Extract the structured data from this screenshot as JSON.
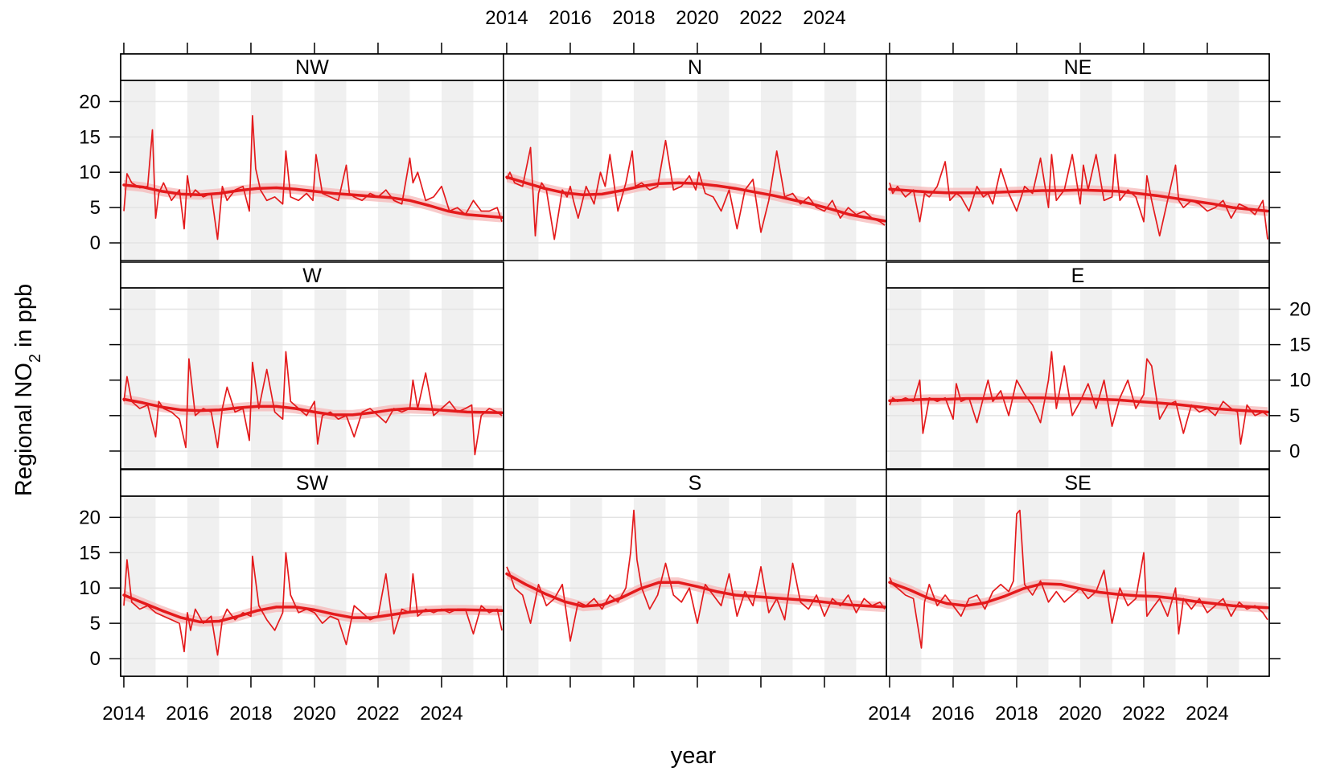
{
  "chart_data": {
    "type": "line",
    "layout": "compass-grid",
    "xlabel": "year",
    "ylabel_main": "Regional NO",
    "ylabel_sub": "2",
    "ylabel_tail": " in ppb",
    "ylim": [
      -2.5,
      23
    ],
    "y_ticks": [
      0,
      5,
      10,
      15,
      20
    ],
    "y_tick_labels": [
      "0",
      "5",
      "10",
      "15",
      "20"
    ],
    "xlim": [
      2013.9,
      2025.95
    ],
    "x_ticks": [
      2014,
      2016,
      2018,
      2020,
      2022,
      2024
    ],
    "x_tick_labels": [
      "2014",
      "2016",
      "2018",
      "2020",
      "2022",
      "2024"
    ],
    "grid": true,
    "shaded_alternate_years": true,
    "colors": {
      "series": "#e41a1c",
      "trend": "#e41a1c",
      "band": "#f6b8b8",
      "year_shade": "#f0f0f0",
      "gridline": "#e3e3e3",
      "frame": "#000000",
      "strip_bg": "#ffffff"
    },
    "panels": [
      {
        "name": "NW",
        "x": [
          2014.0,
          2014.1,
          2014.25,
          2014.5,
          2014.75,
          2014.9,
          2015.0,
          2015.1,
          2015.25,
          2015.5,
          2015.75,
          2015.9,
          2016.0,
          2016.1,
          2016.25,
          2016.5,
          2016.75,
          2016.95,
          2017.1,
          2017.25,
          2017.5,
          2017.75,
          2017.95,
          2018.05,
          2018.15,
          2018.3,
          2018.5,
          2018.75,
          2019.0,
          2019.1,
          2019.25,
          2019.5,
          2019.75,
          2019.95,
          2020.05,
          2020.25,
          2020.5,
          2020.75,
          2021.0,
          2021.1,
          2021.25,
          2021.5,
          2021.75,
          2022.0,
          2022.25,
          2022.5,
          2022.75,
          2023.0,
          2023.1,
          2023.25,
          2023.5,
          2023.75,
          2024.0,
          2024.25,
          2024.5,
          2024.75,
          2025.0,
          2025.25,
          2025.5,
          2025.75,
          2025.9
        ],
        "values": [
          4.5,
          9.8,
          8.5,
          7.8,
          8.0,
          16.0,
          3.5,
          7.0,
          8.5,
          6.0,
          7.5,
          2.0,
          9.5,
          6.5,
          7.5,
          6.5,
          7.0,
          0.5,
          8.0,
          6.0,
          7.5,
          8.0,
          4.5,
          18.0,
          10.5,
          7.5,
          6.0,
          6.5,
          5.5,
          13.0,
          6.5,
          6.0,
          7.0,
          6.0,
          12.5,
          7.0,
          6.5,
          6.0,
          11.0,
          7.0,
          6.5,
          6.0,
          7.0,
          6.5,
          7.5,
          6.0,
          5.5,
          12.0,
          8.5,
          10.0,
          6.0,
          6.5,
          8.0,
          4.5,
          5.0,
          4.0,
          6.0,
          4.5,
          4.5,
          5.0,
          3.0
        ],
        "trend": [
          8.2,
          7.9,
          7.3,
          6.9,
          6.8,
          7.0,
          7.4,
          7.7,
          7.8,
          7.6,
          7.3,
          7.0,
          6.8,
          6.6,
          6.4,
          6.0,
          5.3,
          4.5,
          4.0,
          3.6
        ]
      },
      {
        "name": "N",
        "x": [
          2014.0,
          2014.1,
          2014.25,
          2014.5,
          2014.75,
          2014.9,
          2015.0,
          2015.1,
          2015.25,
          2015.5,
          2015.75,
          2015.9,
          2016.0,
          2016.1,
          2016.25,
          2016.5,
          2016.75,
          2016.95,
          2017.1,
          2017.25,
          2017.5,
          2017.75,
          2017.95,
          2018.05,
          2018.25,
          2018.5,
          2018.75,
          2019.0,
          2019.25,
          2019.5,
          2019.75,
          2019.95,
          2020.05,
          2020.25,
          2020.5,
          2020.75,
          2021.0,
          2021.25,
          2021.5,
          2021.75,
          2022.0,
          2022.25,
          2022.5,
          2022.75,
          2023.0,
          2023.25,
          2023.5,
          2023.75,
          2024.0,
          2024.25,
          2024.5,
          2024.75,
          2025.0,
          2025.25,
          2025.5,
          2025.75,
          2025.9
        ],
        "values": [
          9.0,
          10.0,
          8.5,
          8.0,
          13.5,
          1.0,
          7.0,
          8.5,
          7.5,
          0.5,
          7.5,
          6.5,
          8.0,
          6.0,
          3.5,
          8.0,
          5.5,
          10.0,
          8.0,
          12.5,
          4.5,
          8.5,
          13.0,
          8.0,
          8.5,
          7.5,
          8.0,
          14.5,
          7.5,
          8.0,
          9.5,
          7.5,
          10.0,
          7.0,
          6.5,
          4.5,
          7.5,
          2.0,
          7.5,
          9.0,
          1.5,
          6.0,
          13.0,
          6.5,
          7.0,
          5.5,
          6.5,
          5.0,
          4.5,
          6.0,
          3.5,
          5.0,
          4.0,
          4.5,
          3.5,
          3.0,
          2.5
        ],
        "trend": [
          9.3,
          8.5,
          7.7,
          7.1,
          6.8,
          6.9,
          7.4,
          8.0,
          8.4,
          8.5,
          8.4,
          8.1,
          7.7,
          7.2,
          6.7,
          6.1,
          5.5,
          4.8,
          4.0,
          3.1
        ]
      },
      {
        "name": "NE",
        "x": [
          2014.0,
          2014.1,
          2014.25,
          2014.5,
          2014.75,
          2014.95,
          2015.1,
          2015.25,
          2015.5,
          2015.75,
          2015.9,
          2016.1,
          2016.25,
          2016.5,
          2016.75,
          2016.95,
          2017.1,
          2017.25,
          2017.5,
          2017.75,
          2018.0,
          2018.25,
          2018.5,
          2018.75,
          2019.0,
          2019.1,
          2019.25,
          2019.5,
          2019.75,
          2020.0,
          2020.1,
          2020.25,
          2020.5,
          2020.75,
          2021.0,
          2021.1,
          2021.25,
          2021.5,
          2021.75,
          2022.0,
          2022.1,
          2022.25,
          2022.5,
          2022.75,
          2023.0,
          2023.1,
          2023.25,
          2023.5,
          2023.75,
          2024.0,
          2024.25,
          2024.5,
          2024.75,
          2025.0,
          2025.25,
          2025.5,
          2025.75,
          2025.9
        ],
        "values": [
          8.5,
          7.0,
          8.0,
          6.5,
          7.5,
          3.0,
          7.0,
          6.5,
          8.0,
          11.5,
          6.0,
          7.0,
          6.5,
          4.5,
          8.0,
          6.5,
          7.0,
          5.5,
          10.5,
          7.0,
          4.5,
          8.0,
          7.0,
          12.0,
          5.0,
          12.5,
          6.0,
          7.5,
          12.5,
          5.5,
          11.0,
          7.5,
          12.5,
          6.0,
          6.5,
          12.5,
          6.0,
          7.5,
          6.5,
          3.0,
          9.5,
          6.0,
          1.0,
          6.0,
          11.0,
          6.0,
          5.0,
          6.0,
          5.5,
          4.5,
          5.0,
          6.0,
          3.5,
          5.5,
          5.0,
          4.0,
          6.0,
          0.5
        ],
        "trend": [
          7.6,
          7.4,
          7.2,
          7.1,
          7.1,
          7.1,
          7.2,
          7.3,
          7.4,
          7.4,
          7.5,
          7.4,
          7.3,
          7.0,
          6.7,
          6.3,
          5.9,
          5.5,
          5.0,
          4.5
        ]
      },
      {
        "name": "W",
        "x": [
          2014.0,
          2014.1,
          2014.25,
          2014.5,
          2014.75,
          2015.0,
          2015.1,
          2015.25,
          2015.5,
          2015.75,
          2015.95,
          2016.05,
          2016.25,
          2016.5,
          2016.75,
          2016.95,
          2017.1,
          2017.25,
          2017.5,
          2017.75,
          2017.95,
          2018.05,
          2018.25,
          2018.5,
          2018.75,
          2019.0,
          2019.1,
          2019.25,
          2019.5,
          2019.75,
          2020.0,
          2020.1,
          2020.25,
          2020.5,
          2020.75,
          2021.0,
          2021.25,
          2021.5,
          2021.75,
          2022.0,
          2022.25,
          2022.5,
          2022.75,
          2023.0,
          2023.1,
          2023.25,
          2023.5,
          2023.75,
          2024.0,
          2024.25,
          2024.5,
          2024.75,
          2024.95,
          2025.05,
          2025.25,
          2025.5,
          2025.75,
          2025.9
        ],
        "values": [
          7.0,
          10.5,
          7.0,
          6.0,
          6.5,
          2.0,
          7.0,
          6.0,
          5.5,
          4.5,
          0.5,
          13.0,
          5.0,
          6.0,
          5.5,
          0.5,
          6.0,
          9.0,
          5.5,
          6.0,
          1.5,
          12.5,
          6.0,
          11.5,
          5.5,
          4.5,
          14.0,
          7.0,
          6.0,
          5.0,
          7.0,
          1.0,
          5.0,
          5.5,
          4.5,
          5.0,
          2.0,
          5.5,
          6.0,
          5.0,
          4.0,
          6.0,
          5.5,
          6.0,
          10.0,
          6.0,
          11.0,
          5.0,
          6.0,
          7.0,
          5.5,
          6.0,
          6.5,
          -0.5,
          5.0,
          6.0,
          5.5,
          5.0
        ],
        "trend": [
          7.3,
          6.8,
          6.2,
          5.8,
          5.7,
          5.8,
          6.1,
          6.3,
          6.3,
          6.0,
          5.5,
          5.1,
          5.1,
          5.4,
          5.8,
          6.0,
          5.9,
          5.7,
          5.5,
          5.4
        ]
      },
      {
        "name": "E",
        "x": [
          2014.0,
          2014.1,
          2014.25,
          2014.5,
          2014.75,
          2014.95,
          2015.05,
          2015.25,
          2015.5,
          2015.75,
          2016.0,
          2016.1,
          2016.25,
          2016.5,
          2016.75,
          2016.95,
          2017.1,
          2017.25,
          2017.5,
          2017.75,
          2018.0,
          2018.25,
          2018.5,
          2018.75,
          2019.0,
          2019.1,
          2019.25,
          2019.5,
          2019.75,
          2020.0,
          2020.25,
          2020.5,
          2020.75,
          2021.0,
          2021.25,
          2021.5,
          2021.75,
          2022.0,
          2022.1,
          2022.25,
          2022.5,
          2022.75,
          2023.0,
          2023.25,
          2023.5,
          2023.75,
          2024.0,
          2024.25,
          2024.5,
          2024.75,
          2024.95,
          2025.05,
          2025.25,
          2025.5,
          2025.75,
          2025.9
        ],
        "values": [
          6.5,
          7.5,
          7.0,
          7.5,
          7.0,
          10.0,
          2.5,
          7.5,
          7.0,
          7.5,
          4.5,
          9.5,
          7.0,
          7.5,
          4.0,
          7.5,
          10.0,
          7.0,
          8.5,
          5.0,
          10.0,
          8.0,
          6.5,
          4.0,
          10.0,
          14.0,
          6.0,
          12.0,
          5.0,
          7.0,
          9.5,
          6.0,
          10.0,
          3.5,
          7.5,
          10.0,
          6.0,
          8.0,
          13.0,
          12.0,
          4.5,
          6.5,
          7.0,
          2.5,
          6.5,
          5.5,
          6.0,
          5.0,
          7.0,
          6.0,
          5.5,
          1.0,
          6.5,
          5.0,
          5.5,
          5.0
        ],
        "trend": [
          7.1,
          7.2,
          7.3,
          7.3,
          7.4,
          7.4,
          7.5,
          7.5,
          7.5,
          7.4,
          7.4,
          7.3,
          7.2,
          7.0,
          6.8,
          6.6,
          6.3,
          6.0,
          5.8,
          5.5
        ]
      },
      {
        "name": "SW",
        "x": [
          2014.0,
          2014.1,
          2014.25,
          2014.5,
          2014.75,
          2015.0,
          2015.25,
          2015.5,
          2015.75,
          2015.9,
          2016.0,
          2016.1,
          2016.25,
          2016.5,
          2016.75,
          2016.95,
          2017.1,
          2017.25,
          2017.5,
          2017.75,
          2018.0,
          2018.05,
          2018.25,
          2018.5,
          2018.75,
          2019.0,
          2019.1,
          2019.25,
          2019.5,
          2019.75,
          2020.0,
          2020.25,
          2020.5,
          2020.75,
          2021.0,
          2021.25,
          2021.5,
          2021.75,
          2022.0,
          2022.25,
          2022.5,
          2022.75,
          2023.0,
          2023.1,
          2023.25,
          2023.5,
          2023.75,
          2024.0,
          2024.25,
          2024.5,
          2024.75,
          2025.0,
          2025.25,
          2025.5,
          2025.75,
          2025.9
        ],
        "values": [
          7.5,
          14.0,
          8.0,
          7.0,
          7.5,
          6.5,
          6.0,
          5.5,
          5.0,
          1.0,
          6.5,
          4.0,
          7.0,
          5.0,
          6.0,
          0.5,
          5.5,
          7.0,
          5.5,
          6.5,
          6.0,
          14.5,
          7.5,
          5.5,
          4.0,
          6.5,
          15.0,
          9.0,
          6.5,
          7.0,
          6.5,
          5.0,
          6.0,
          5.5,
          2.0,
          7.5,
          6.5,
          5.5,
          6.0,
          12.0,
          3.5,
          7.0,
          6.5,
          12.0,
          6.0,
          7.0,
          6.5,
          7.0,
          6.5,
          7.0,
          7.0,
          3.5,
          7.5,
          6.5,
          7.0,
          4.0
        ],
        "trend": [
          9.0,
          7.9,
          6.8,
          5.8,
          5.2,
          5.3,
          6.0,
          6.8,
          7.3,
          7.3,
          6.9,
          6.3,
          5.8,
          5.8,
          6.2,
          6.6,
          6.8,
          6.9,
          6.9,
          6.8
        ]
      },
      {
        "name": "S",
        "x": [
          2014.0,
          2014.1,
          2014.25,
          2014.5,
          2014.75,
          2015.0,
          2015.25,
          2015.5,
          2015.75,
          2016.0,
          2016.25,
          2016.5,
          2016.75,
          2017.0,
          2017.25,
          2017.5,
          2017.75,
          2017.9,
          2018.0,
          2018.1,
          2018.25,
          2018.5,
          2018.75,
          2019.0,
          2019.25,
          2019.5,
          2019.75,
          2020.0,
          2020.25,
          2020.5,
          2020.75,
          2021.0,
          2021.25,
          2021.5,
          2021.75,
          2022.0,
          2022.25,
          2022.5,
          2022.75,
          2023.0,
          2023.25,
          2023.5,
          2023.75,
          2024.0,
          2024.25,
          2024.5,
          2024.75,
          2025.0,
          2025.25,
          2025.5,
          2025.75,
          2025.9
        ],
        "values": [
          13.0,
          12.0,
          10.0,
          9.0,
          5.0,
          10.5,
          7.5,
          8.5,
          10.5,
          2.5,
          8.0,
          7.5,
          8.5,
          7.0,
          9.0,
          8.0,
          10.0,
          15.0,
          21.0,
          14.0,
          10.0,
          7.0,
          9.0,
          13.5,
          9.0,
          8.0,
          10.0,
          5.0,
          10.5,
          9.0,
          7.5,
          12.0,
          6.0,
          9.5,
          7.5,
          13.0,
          6.5,
          8.5,
          5.5,
          13.5,
          8.0,
          7.0,
          9.0,
          6.0,
          8.5,
          7.5,
          9.0,
          6.5,
          8.5,
          7.5,
          8.0,
          7.0
        ],
        "trend": [
          12.0,
          10.5,
          9.2,
          8.1,
          7.4,
          7.6,
          8.6,
          9.9,
          10.8,
          10.8,
          10.2,
          9.5,
          9.0,
          8.8,
          8.6,
          8.4,
          8.2,
          7.9,
          7.6,
          7.3
        ]
      },
      {
        "name": "SE",
        "x": [
          2014.0,
          2014.1,
          2014.25,
          2014.5,
          2014.75,
          2015.0,
          2015.1,
          2015.25,
          2015.5,
          2015.75,
          2016.0,
          2016.25,
          2016.5,
          2016.75,
          2017.0,
          2017.25,
          2017.5,
          2017.75,
          2017.9,
          2018.0,
          2018.1,
          2018.25,
          2018.5,
          2018.75,
          2019.0,
          2019.25,
          2019.5,
          2019.75,
          2020.0,
          2020.25,
          2020.5,
          2020.75,
          2021.0,
          2021.25,
          2021.5,
          2021.75,
          2022.0,
          2022.1,
          2022.25,
          2022.5,
          2022.75,
          2023.0,
          2023.1,
          2023.25,
          2023.5,
          2023.75,
          2024.0,
          2024.25,
          2024.5,
          2024.75,
          2025.0,
          2025.25,
          2025.5,
          2025.75,
          2025.9
        ],
        "values": [
          11.5,
          10.5,
          10.0,
          9.0,
          8.5,
          1.5,
          8.0,
          10.5,
          7.5,
          9.0,
          7.5,
          6.0,
          8.5,
          9.0,
          7.0,
          9.5,
          10.5,
          9.5,
          11.0,
          20.5,
          21.0,
          10.5,
          9.0,
          11.0,
          8.0,
          9.5,
          8.0,
          9.0,
          10.0,
          8.5,
          9.5,
          12.5,
          5.0,
          10.0,
          7.5,
          8.5,
          15.0,
          6.0,
          7.0,
          8.5,
          6.0,
          10.0,
          3.5,
          8.5,
          7.0,
          8.5,
          6.5,
          7.5,
          8.5,
          6.0,
          8.0,
          7.0,
          7.5,
          6.5,
          5.5
        ],
        "trend": [
          10.8,
          9.8,
          8.6,
          7.8,
          7.5,
          7.9,
          8.8,
          9.9,
          10.6,
          10.5,
          9.9,
          9.4,
          9.1,
          8.9,
          8.8,
          8.5,
          8.1,
          7.8,
          7.5,
          7.2
        ]
      }
    ],
    "trend_x": [
      2014.0,
      2014.6,
      2015.2,
      2015.8,
      2016.4,
      2017.0,
      2017.6,
      2018.2,
      2018.8,
      2019.4,
      2020.0,
      2020.6,
      2021.2,
      2021.8,
      2022.4,
      2023.0,
      2023.6,
      2024.2,
      2024.8,
      2025.9
    ]
  }
}
